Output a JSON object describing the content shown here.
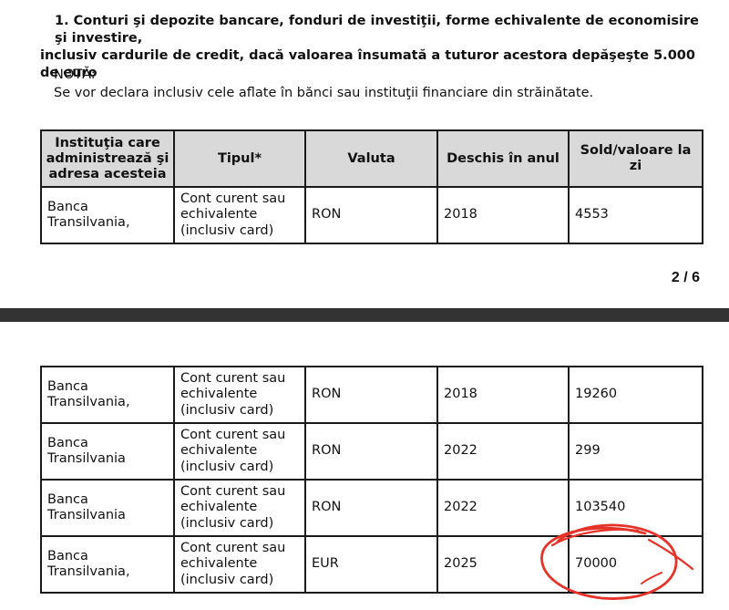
{
  "section": {
    "title_line1": "1. Conturi şi depozite bancare, fonduri de investiţii, forme echivalente de economisire şi investire,",
    "title_line2": "inclusiv cardurile de credit, dacă valoarea însumată a tuturor acestora depăşeşte 5.000 de euro",
    "note_label": "NOTĂ:",
    "note_text": "Se vor declara inclusiv cele aflate în bănci sau instituţii financiare din străinătate."
  },
  "table_headers": {
    "institution": "Instituţia care administrează şi adresa acesteia",
    "type": "Tipul*",
    "currency": "Valuta",
    "opened": "Deschis în anul",
    "balance": "Sold/valoare la zi"
  },
  "page1_rows": [
    {
      "institution": "Banca Transilvania,",
      "type": "Cont curent sau echivalente (inclusiv card)",
      "currency": "RON",
      "year": "2018",
      "balance": "4553"
    }
  ],
  "page_indicator": "2 / 6",
  "page2_rows": [
    {
      "institution": "Banca Transilvania,",
      "type": "Cont curent sau echivalente (inclusiv card)",
      "currency": "RON",
      "year": "2018",
      "balance": "19260"
    },
    {
      "institution": "Banca Transilvania",
      "type": "Cont curent sau echivalente (inclusiv card)",
      "currency": "RON",
      "year": "2022",
      "balance": "299"
    },
    {
      "institution": "Banca Transilvania",
      "type": "Cont curent sau echivalente (inclusiv card)",
      "currency": "RON",
      "year": "2022",
      "balance": "103540"
    },
    {
      "institution": "Banca Transilvania,",
      "type": "Cont curent sau echivalente (inclusiv card)",
      "currency": "EUR",
      "year": "2025",
      "balance": "70000"
    }
  ],
  "colors": {
    "header_bg": "#d9d9d9",
    "separator": "#333333",
    "annotation_red": "#e5332a"
  }
}
